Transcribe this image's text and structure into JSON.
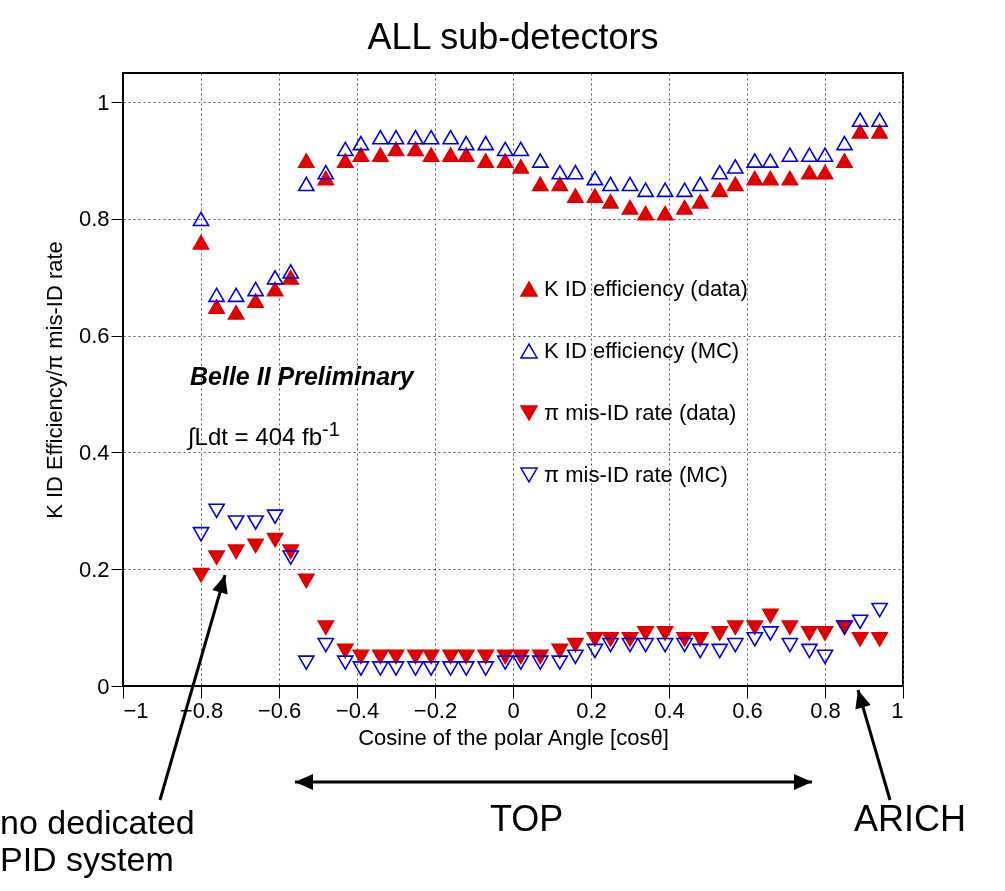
{
  "chart_data": {
    "type": "scatter",
    "title": "ALL sub-detectors",
    "xlabel": "Cosine of the polar Angle [cosθ]",
    "ylabel": "K ID Efficiency/π mis-ID rate",
    "x": [
      -0.8,
      -0.76,
      -0.71,
      -0.66,
      -0.61,
      -0.57,
      -0.53,
      -0.48,
      -0.43,
      -0.39,
      -0.34,
      -0.3,
      -0.25,
      -0.21,
      -0.16,
      -0.12,
      -0.07,
      -0.02,
      0.02,
      0.07,
      0.12,
      0.16,
      0.21,
      0.25,
      0.3,
      0.34,
      0.39,
      0.44,
      0.48,
      0.53,
      0.57,
      0.62,
      0.66,
      0.71,
      0.76,
      0.8,
      0.85,
      0.89,
      0.94
    ],
    "series": [
      {
        "name": "K ID efficiency (data)",
        "color": "#e00000",
        "marker": "triangle",
        "values": [
          0.76,
          0.65,
          0.64,
          0.66,
          0.68,
          0.7,
          0.9,
          0.87,
          0.9,
          0.91,
          0.91,
          0.92,
          0.92,
          0.91,
          0.91,
          0.91,
          0.9,
          0.9,
          0.89,
          0.86,
          0.86,
          0.84,
          0.84,
          0.83,
          0.82,
          0.81,
          0.81,
          0.82,
          0.83,
          0.85,
          0.86,
          0.87,
          0.87,
          0.87,
          0.88,
          0.88,
          0.9,
          0.95,
          0.95
        ]
      },
      {
        "name": "K ID efficiency (MC)",
        "color": "#0000e0",
        "marker": "triangle-open",
        "values": [
          0.8,
          0.67,
          0.67,
          0.68,
          0.7,
          0.71,
          0.86,
          0.88,
          0.92,
          0.93,
          0.94,
          0.94,
          0.94,
          0.94,
          0.94,
          0.93,
          0.93,
          0.92,
          0.92,
          0.9,
          0.88,
          0.88,
          0.87,
          0.86,
          0.86,
          0.85,
          0.85,
          0.85,
          0.86,
          0.88,
          0.89,
          0.9,
          0.9,
          0.91,
          0.91,
          0.91,
          0.93,
          0.97,
          0.97
        ]
      },
      {
        "name": "π mis-ID rate (data)",
        "color": "#e00000",
        "marker": "triangle-down",
        "values": [
          0.19,
          0.22,
          0.23,
          0.24,
          0.25,
          0.23,
          0.18,
          0.1,
          0.06,
          0.05,
          0.05,
          0.05,
          0.05,
          0.05,
          0.05,
          0.05,
          0.05,
          0.05,
          0.05,
          0.05,
          0.06,
          0.07,
          0.08,
          0.08,
          0.08,
          0.09,
          0.09,
          0.08,
          0.08,
          0.09,
          0.1,
          0.1,
          0.12,
          0.1,
          0.09,
          0.09,
          0.1,
          0.08,
          0.08
        ]
      },
      {
        "name": "π mis-ID rate (MC)",
        "color": "#0000e0",
        "marker": "triangle-down-open",
        "values": [
          0.26,
          0.3,
          0.28,
          0.28,
          0.29,
          0.22,
          0.04,
          0.07,
          0.04,
          0.03,
          0.03,
          0.03,
          0.03,
          0.03,
          0.03,
          0.03,
          0.03,
          0.04,
          0.04,
          0.04,
          0.04,
          0.05,
          0.06,
          0.07,
          0.07,
          0.07,
          0.07,
          0.07,
          0.06,
          0.06,
          0.07,
          0.08,
          0.09,
          0.07,
          0.06,
          0.05,
          0.1,
          0.11,
          0.13
        ]
      }
    ],
    "xlim": [
      -1,
      1
    ],
    "xticks": [
      -1,
      -0.8,
      -0.6,
      -0.4,
      -0.2,
      0,
      0.2,
      0.4,
      0.6,
      0.8,
      1
    ],
    "ylim": [
      0,
      1.05
    ],
    "yticks": [
      0,
      0.2,
      0.4,
      0.6,
      0.8,
      1
    ],
    "grid": true,
    "legend": "right",
    "annotations": [
      "Belle II Preliminary",
      "∫Ldt = 404 fb$^{-1}$",
      "no dedicated PID system",
      "TOP",
      "ARICH"
    ]
  }
}
